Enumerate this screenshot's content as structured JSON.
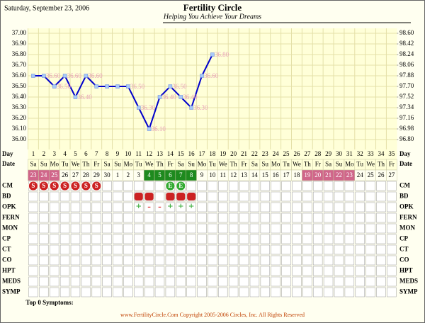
{
  "header": {
    "date": "Saturday, September 23, 2006",
    "title": "Fertility Circle",
    "subtitle": "Helping You Achieve Your Dreams"
  },
  "chart_data": {
    "type": "line",
    "x_label": "Day",
    "categories": [
      1,
      2,
      3,
      4,
      5,
      6,
      7,
      8,
      9,
      10,
      11,
      12,
      13,
      14,
      15,
      16,
      17,
      18,
      19,
      20,
      21,
      22,
      23,
      24,
      25,
      26,
      27,
      28,
      29,
      30,
      31,
      32,
      33,
      34,
      35
    ],
    "values": [
      36.6,
      36.6,
      36.5,
      36.6,
      36.4,
      36.6,
      36.5,
      36.5,
      36.5,
      36.5,
      36.3,
      36.1,
      36.4,
      36.5,
      36.4,
      36.3,
      36.6,
      36.8,
      null,
      null,
      null,
      null,
      null,
      null,
      null,
      null,
      null,
      null,
      null,
      null,
      null,
      null,
      null,
      null,
      null
    ],
    "value_labels": [
      null,
      "36.60",
      "36.50",
      "36.60",
      "36.40",
      "36.60",
      null,
      null,
      null,
      "36.50",
      "36.30",
      "36.10",
      "36.40",
      "36.50",
      "36.40",
      "36.30",
      "36.60",
      "36.80",
      null,
      null,
      null,
      null,
      null,
      null,
      null,
      null,
      null,
      null,
      null,
      null,
      null,
      null,
      null,
      null,
      null
    ],
    "color": "#0000cc",
    "label_color": "#e8a0b8",
    "grid": true,
    "ylim": [
      36.0,
      37.0
    ],
    "yticks": [
      {
        "value": 36.0,
        "label": "36.00"
      },
      {
        "value": 36.1,
        "label": "36.10"
      },
      {
        "value": 36.2,
        "label": "36.20"
      },
      {
        "value": 36.3,
        "label": "36.30"
      },
      {
        "value": 36.4,
        "label": "36.40"
      },
      {
        "value": 36.5,
        "label": "36.50"
      },
      {
        "value": 36.6,
        "label": "36.60"
      },
      {
        "value": 36.7,
        "label": "36.70"
      },
      {
        "value": 36.8,
        "label": "36.80"
      },
      {
        "value": 36.9,
        "label": "36.90"
      },
      {
        "value": 37.0,
        "label": "37.00"
      }
    ],
    "y2lim": [
      96.8,
      98.6
    ],
    "y2ticks": [
      {
        "value": 96.8,
        "label": "96.80"
      },
      96.98,
      97.16,
      97.34,
      97.52,
      {
        "value": 97.7,
        "label": "97.70"
      },
      97.88,
      98.06,
      98.24,
      98.42,
      {
        "value": 98.6,
        "label": "98.60"
      }
    ]
  },
  "calendar": {
    "label": "Date",
    "weekdays": [
      "Sa",
      "Su",
      "Mo",
      "Tu",
      "We",
      "Th",
      "Fr",
      "Sa",
      "Su",
      "Mo",
      "Tu",
      "We",
      "Th",
      "Fr",
      "Sa",
      "Su",
      "Mo",
      "Tu",
      "We",
      "Th",
      "Fr",
      "Sa",
      "Su",
      "Mo",
      "Tu",
      "We",
      "Th",
      "Fr",
      "Sa",
      "Su",
      "Mo",
      "Tu",
      "We",
      "Th",
      "Fr"
    ],
    "dates": [
      23,
      24,
      25,
      26,
      27,
      28,
      29,
      30,
      1,
      2,
      3,
      4,
      5,
      6,
      7,
      8,
      9,
      10,
      11,
      12,
      13,
      14,
      15,
      16,
      17,
      18,
      19,
      20,
      21,
      22,
      23,
      24,
      25,
      26,
      27
    ],
    "date_colors": [
      "#d0668a",
      "#d0668a",
      "#d0668a",
      null,
      null,
      null,
      null,
      null,
      null,
      null,
      null,
      "#1e8a1e",
      "#1e8a1e",
      "#1e8a1e",
      "#1e8a1e",
      "#1e8a1e",
      null,
      null,
      null,
      null,
      null,
      null,
      null,
      null,
      null,
      null,
      "#d0668a",
      "#d0668a",
      "#d0668a",
      "#d0668a",
      "#d0668a",
      null,
      null,
      null,
      null
    ]
  },
  "rows": [
    {
      "label": "CM",
      "entries": [
        "S",
        "S",
        "S",
        "S",
        "S",
        "S",
        "S",
        null,
        null,
        null,
        null,
        null,
        null,
        "E",
        "E",
        null,
        null,
        null,
        null,
        null,
        null,
        null,
        null,
        null,
        null,
        null,
        null,
        null,
        null,
        null,
        null,
        null,
        null,
        null,
        null
      ]
    },
    {
      "label": "BD",
      "days": [
        11,
        12,
        14,
        15,
        16
      ]
    },
    {
      "label": "OPK",
      "entries": [
        null,
        null,
        null,
        null,
        null,
        null,
        null,
        null,
        null,
        null,
        "+",
        "-",
        "-",
        "+",
        "+",
        "+",
        null,
        null,
        null,
        null,
        null,
        null,
        null,
        null,
        null,
        null,
        null,
        null,
        null,
        null,
        null,
        null,
        null,
        null,
        null
      ]
    },
    {
      "label": "FERN"
    },
    {
      "label": "MON"
    },
    {
      "label": "CP"
    },
    {
      "label": "CT"
    },
    {
      "label": "CO"
    },
    {
      "label": "HPT"
    },
    {
      "label": "MEDS"
    },
    {
      "label": "SYMP"
    }
  ],
  "footer": {
    "symptoms": "Top 0 Symptoms:",
    "copyright": "www.FertilityCircle.Com Copyright 2005-2006 Circles, Inc. All Rights Reserved"
  }
}
